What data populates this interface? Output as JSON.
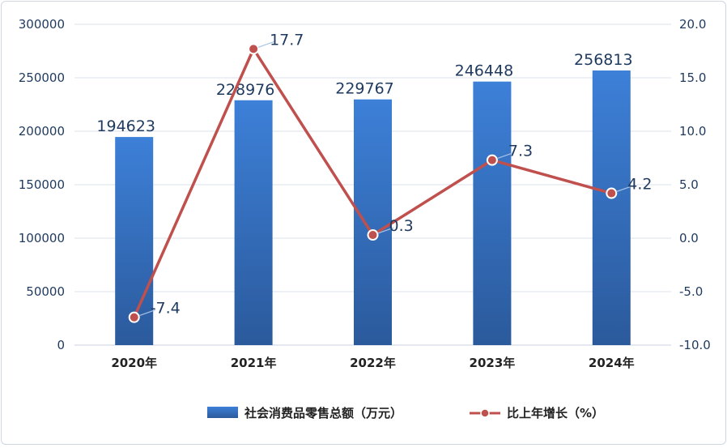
{
  "chart_data": {
    "type": "bar",
    "categories": [
      "2020年",
      "2021年",
      "2022年",
      "2023年",
      "2024年"
    ],
    "series": [
      {
        "name": "社会消费品零售总额（万元）",
        "type": "bar",
        "axis": "left",
        "values": [
          194623,
          228976,
          229767,
          246448,
          256813
        ],
        "labels": [
          "194623",
          "228976",
          "229767",
          "246448",
          "256813"
        ],
        "color": "#3a7bd5"
      },
      {
        "name": "比上年增长（%）",
        "type": "line",
        "axis": "right",
        "values": [
          -7.4,
          17.7,
          0.3,
          7.3,
          4.2
        ],
        "labels": [
          "-7.4",
          "17.7",
          "0.3",
          "7.3",
          "4.2"
        ],
        "color": "#c0504d"
      }
    ],
    "left_axis": {
      "ylim": [
        0,
        300000
      ],
      "ticks": [
        "0",
        "50000",
        "100000",
        "150000",
        "200000",
        "250000",
        "300000"
      ]
    },
    "right_axis": {
      "ylim": [
        -10,
        20
      ],
      "ticks": [
        "-10.0",
        "-5.0",
        "0.0",
        "5.0",
        "10.0",
        "15.0",
        "20.0"
      ]
    },
    "grid": true,
    "legend_position": "bottom"
  }
}
